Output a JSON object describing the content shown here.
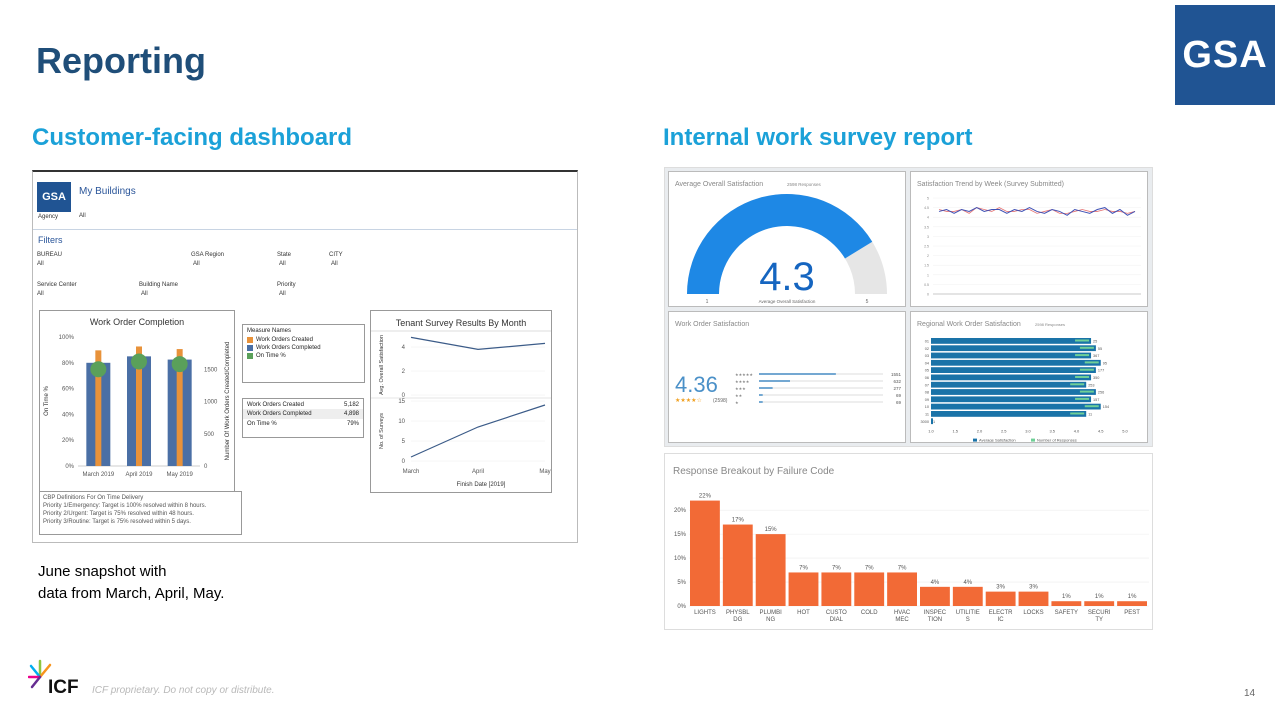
{
  "page": {
    "title": "Reporting",
    "logo_text": "GSA",
    "left_heading": "Customer-facing dashboard",
    "right_heading": "Internal work survey report",
    "note_line1": "June snapshot with",
    "note_line2": "data from March, April, May.",
    "footer_brand": "ICF",
    "footer_text": "ICF proprietary. Do not copy or distribute.",
    "page_number": "14",
    "colors": {
      "title": "#1f4e79",
      "heading": "#1ba1d8",
      "gsa_blue": "#205493",
      "orange": "#e8923a",
      "steel_blue": "#4a6fa5",
      "green": "#5aa05a",
      "bar_red": "#f26a36",
      "gauge_blue": "#1e88e5"
    }
  },
  "dashboard": {
    "header": {
      "logo": "GSA",
      "title": "My Buildings",
      "agency_label": "Agency",
      "agency_value": "All"
    },
    "filters_title": "Filters",
    "filters": [
      {
        "label": "BUREAU",
        "value": "All"
      },
      {
        "label": "GSA Region",
        "value": "All"
      },
      {
        "label": "State",
        "value": "All"
      },
      {
        "label": "CITY",
        "value": "All"
      },
      {
        "label": "Service Center",
        "value": "All"
      },
      {
        "label": "Building Name",
        "value": "All"
      },
      {
        "label": "Priority",
        "value": "All"
      }
    ],
    "legend_title": "Measure Names",
    "legend": [
      {
        "label": "Work Orders Created",
        "color": "#e8923a"
      },
      {
        "label": "Work Orders Completed",
        "color": "#4a6fa5"
      },
      {
        "label": "On Time %",
        "color": "#5aa05a"
      }
    ],
    "summary": [
      {
        "label": "Work Orders Created",
        "value": "5,182"
      },
      {
        "label": "Work Orders Completed",
        "value": "4,898"
      },
      {
        "label": "On Time %",
        "value": "79%"
      }
    ],
    "definitions": [
      "CBP Definitions For On Time Delivery",
      "Priority 1/Emergency: Target is 100% resolved within 8 hours.",
      "Priority 2/Urgent: Target is 75% resolved within 48 hours.",
      "Priority 3/Routine: Target is 75% resolved within 5 days."
    ]
  },
  "chart_data": [
    {
      "type": "bar",
      "title": "Work Order Completion",
      "categories": [
        "March 2019",
        "April 2019",
        "May 2019"
      ],
      "series": [
        {
          "name": "Work Orders Completed",
          "values": [
            1600,
            1700,
            1650
          ]
        },
        {
          "name": "Work Orders Created",
          "values": [
            1700,
            1760,
            1720
          ]
        },
        {
          "name": "On Time %",
          "values": [
            75,
            81,
            79
          ]
        }
      ],
      "left_ylabel": "On Time %",
      "left_ticks": [
        "100%",
        "80%",
        "60%",
        "40%",
        "20%",
        "0%"
      ],
      "right_ylabel": "Number Of Work Orders Created/Completed",
      "right_ticks": [
        "1500",
        "1000",
        "500",
        "0"
      ],
      "ylim": [
        0,
        2000
      ]
    },
    {
      "type": "line",
      "title": "Tenant Survey Results By Month",
      "x": [
        "March",
        "April",
        "May"
      ],
      "xlabel": "Finish Date [2019]",
      "panels": [
        {
          "ylabel": "Avg. Overall Satisfaction",
          "ticks": [
            "4",
            "2",
            "0"
          ],
          "ylim": [
            0,
            5
          ],
          "values": [
            4.8,
            3.8,
            4.3
          ]
        },
        {
          "ylabel": "No. of Surveys",
          "ticks": [
            "15",
            "10",
            "5",
            "0"
          ],
          "ylim": [
            0,
            15
          ],
          "values": [
            1,
            8.5,
            14
          ]
        }
      ]
    },
    {
      "type": "gauge",
      "title": "Average Overall Satisfaction",
      "responses": "2598",
      "responses_label": "Responses",
      "value": 4.3,
      "value_text": "4.3",
      "min": "1",
      "max": "5",
      "caption": "Average Overall Satisfaction"
    },
    {
      "type": "line",
      "title": "Satisfaction Trend by Week (Survey Submitted)",
      "values": [
        4.3,
        4.4,
        4.2,
        4.4,
        4.3,
        4.5,
        4.3,
        4.4,
        4.4,
        4.2,
        4.4,
        4.3,
        4.5,
        4.3,
        4.2,
        4.4,
        4.3,
        4.1,
        4.4,
        4.3,
        4.2,
        4.4,
        4.5,
        4.2,
        4.4,
        4.1,
        4.3
      ],
      "values2": [
        4.4,
        4.3,
        4.3,
        4.4,
        4.2,
        4.5,
        4.4,
        4.3,
        4.5,
        4.3,
        4.3,
        4.4,
        4.4,
        4.2,
        4.3,
        4.4,
        4.2,
        4.2,
        4.3,
        4.4,
        4.3,
        4.3,
        4.4,
        4.3,
        4.3,
        4.2,
        4.3
      ],
      "ylim": [
        0,
        5
      ]
    },
    {
      "type": "bar",
      "title": "Work Order Satisfaction",
      "average": "4.36",
      "responses": "(2598)",
      "stars_label": "★★★★☆",
      "rows": [
        {
          "stars": "★★★★★",
          "count": "1551",
          "pct": 0.62
        },
        {
          "stars": "★★★★",
          "count": "632",
          "pct": 0.25
        },
        {
          "stars": "★★★",
          "count": "277",
          "pct": 0.11
        },
        {
          "stars": "★★",
          "count": "69",
          "pct": 0.03
        },
        {
          "stars": "★",
          "count": "69",
          "pct": 0.03
        }
      ]
    },
    {
      "type": "bar",
      "title": "Regional Work Order Satisfaction",
      "responses": "2598",
      "responses_label": "Responses",
      "categories": [
        "01",
        "02",
        "03",
        "04",
        "05",
        "06",
        "07",
        "08",
        "09",
        "10",
        "11",
        "3000"
      ],
      "series": [
        {
          "name": "Average Satisfaction",
          "values": [
            4.3,
            4.4,
            4.3,
            4.5,
            4.4,
            4.3,
            4.2,
            4.4,
            4.3,
            4.5,
            4.2,
            1.0
          ]
        },
        {
          "name": "Number of Responses",
          "values": [
            25,
            55,
            367,
            95,
            177,
            350,
            253,
            256,
            157,
            154,
            11,
            1
          ]
        }
      ],
      "x_ticks": [
        "1.0",
        "1.5",
        "2.0",
        "2.5",
        "3.0",
        "3.5",
        "4.0",
        "4.5",
        "5.0"
      ]
    },
    {
      "type": "bar",
      "title": "Response Breakout by Failure Code",
      "categories": [
        "LIGHTS",
        "PHYSBL DG",
        "PLUMBI NG",
        "HOT",
        "CUSTO DIAL",
        "COLD",
        "HVAC MEC",
        "INSPEC TION",
        "UTILITIE S",
        "ELECTR IC",
        "LOCKS",
        "SAFETY",
        "SECURI TY",
        "PEST"
      ],
      "values": [
        22,
        17,
        15,
        7,
        7,
        7,
        7,
        4,
        4,
        3,
        3,
        1,
        1,
        1
      ],
      "labels": [
        "22%",
        "17%",
        "15%",
        "7%",
        "7%",
        "7%",
        "7%",
        "4%",
        "4%",
        "3%",
        "3%",
        "1%",
        "1%",
        "1%"
      ],
      "y_ticks": [
        "20%",
        "15%",
        "10%",
        "5%",
        "0%"
      ],
      "ylim": [
        0,
        24
      ]
    }
  ]
}
